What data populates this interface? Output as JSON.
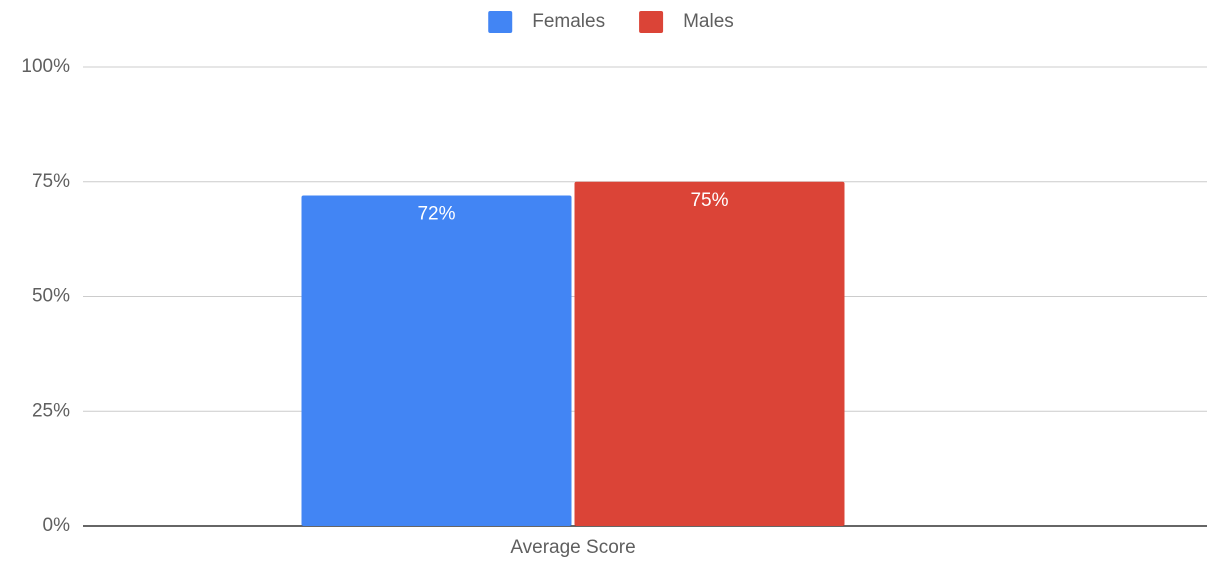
{
  "chart_data": {
    "type": "bar",
    "categories": [
      "Average Score"
    ],
    "series": [
      {
        "name": "Females",
        "color": "#4285f4",
        "values": [
          72
        ],
        "value_labels": [
          "72%"
        ]
      },
      {
        "name": "Males",
        "color": "#db4437",
        "values": [
          75
        ],
        "value_labels": [
          "75%"
        ]
      }
    ],
    "ylim": [
      0,
      100
    ],
    "yticks": [
      {
        "value": 0,
        "label": "0%"
      },
      {
        "value": 25,
        "label": "25%"
      },
      {
        "value": 50,
        "label": "50%"
      },
      {
        "value": 75,
        "label": "75%"
      },
      {
        "value": 100,
        "label": "100%"
      }
    ],
    "grid": true,
    "legend": "top"
  }
}
